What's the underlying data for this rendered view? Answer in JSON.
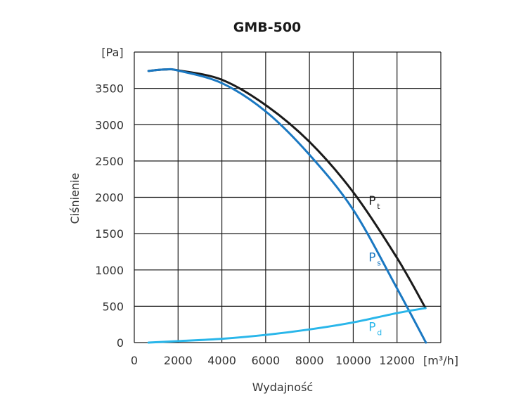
{
  "chart_data": {
    "type": "line",
    "title": "GMB-500",
    "xlabel": "Wydajność",
    "ylabel": "Ciśnienie",
    "x_unit": "[m³/h]",
    "y_unit": "[Pa]",
    "xlim": [
      0,
      14000
    ],
    "ylim": [
      0,
      4000
    ],
    "x_grid_step": 2000,
    "y_grid_step": 500,
    "grid": true,
    "x_ticks": [
      "0",
      "2000",
      "4000",
      "6000",
      "8000",
      "10000",
      "12000"
    ],
    "y_ticks": [
      "0",
      "500",
      "1000",
      "1500",
      "2000",
      "2500",
      "3000",
      "3500"
    ],
    "series": [
      {
        "name": "Pt",
        "label_main": "P",
        "label_sub": "t",
        "color": "#1a1a1a",
        "x": [
          650,
          1400,
          2000,
          4000,
          6000,
          8000,
          10000,
          12000,
          13300
        ],
        "y": [
          3740,
          3760,
          3748,
          3619,
          3270,
          2764,
          2070,
          1165,
          475
        ],
        "label_at": [
          10700,
          1900
        ]
      },
      {
        "name": "Ps",
        "label_main": "P",
        "label_sub": "s",
        "color": "#1a78c2",
        "x": [
          650,
          1400,
          2000,
          4000,
          6000,
          8000,
          10000,
          12000,
          13320
        ],
        "y": [
          3740,
          3760,
          3745,
          3572,
          3183,
          2586,
          1827,
          746,
          0
        ],
        "label_at": [
          10700,
          1120
        ]
      },
      {
        "name": "Pd",
        "label_main": "P",
        "label_sub": "d",
        "color": "#29b6ea",
        "x": [
          650,
          2000,
          4000,
          6000,
          8000,
          10000,
          12000,
          13300
        ],
        "y": [
          0,
          20,
          52,
          106,
          181,
          278,
          406,
          475
        ],
        "label_at": [
          10700,
          160
        ]
      }
    ]
  }
}
